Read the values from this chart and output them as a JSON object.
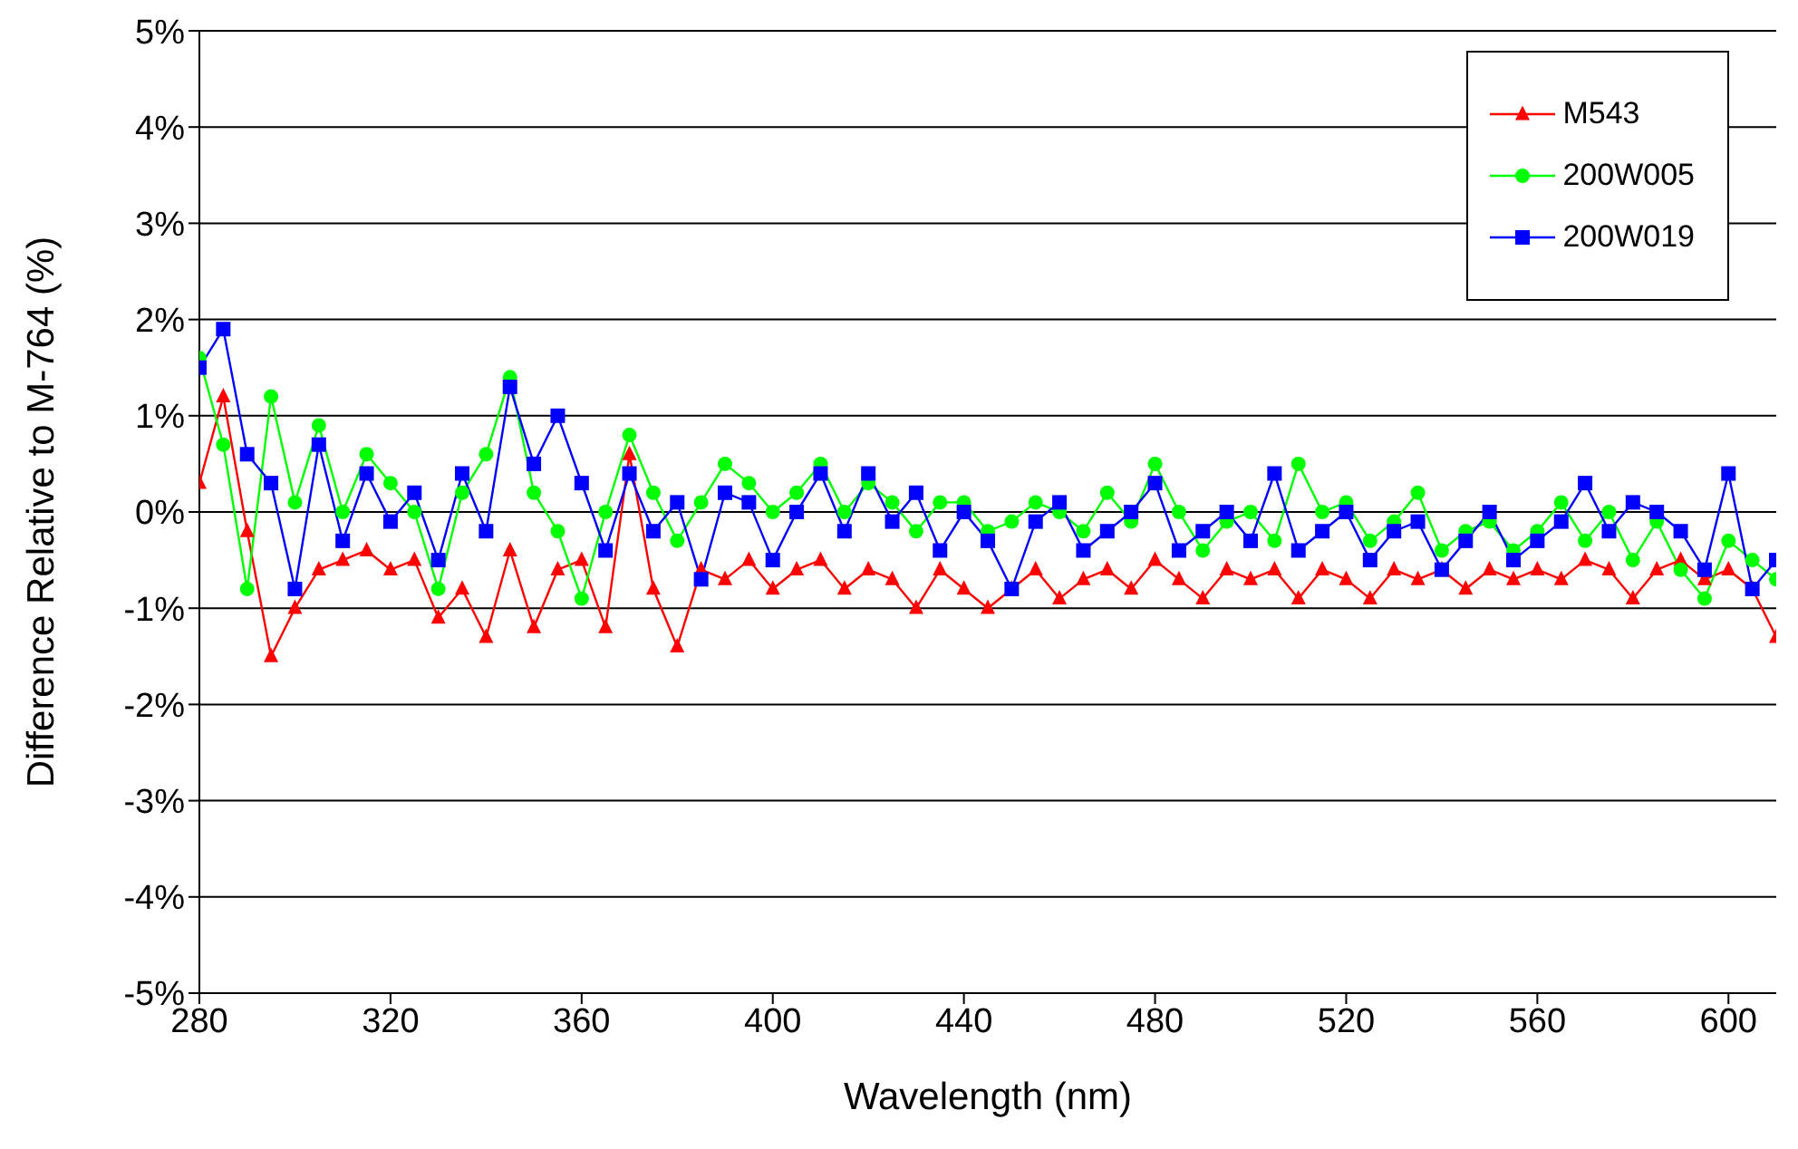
{
  "chart_data": {
    "type": "line",
    "xlabel": "Wavelength (nm)",
    "ylabel": "Difference Relative to M-764 (%)",
    "x": [
      280,
      285,
      290,
      295,
      300,
      305,
      310,
      315,
      320,
      325,
      330,
      335,
      340,
      345,
      350,
      355,
      360,
      365,
      370,
      375,
      380,
      385,
      390,
      395,
      400,
      405,
      410,
      415,
      420,
      425,
      430,
      435,
      440,
      445,
      450,
      455,
      460,
      465,
      470,
      475,
      480,
      485,
      490,
      495,
      500,
      505,
      510,
      515,
      520,
      525,
      530,
      535,
      540,
      545,
      550,
      555,
      560,
      565,
      570,
      575,
      580,
      585,
      590,
      595,
      600,
      605,
      610
    ],
    "series": [
      {
        "name": "M543",
        "color": "#ff0000",
        "marker": "triangle",
        "values": [
          0.3,
          1.2,
          -0.2,
          -1.5,
          -1.0,
          -0.6,
          -0.5,
          -0.4,
          -0.6,
          -0.5,
          -1.1,
          -0.8,
          -1.3,
          -0.4,
          -1.2,
          -0.6,
          -0.5,
          -1.2,
          0.6,
          -0.8,
          -1.4,
          -0.6,
          -0.7,
          -0.5,
          -0.8,
          -0.6,
          -0.5,
          -0.8,
          -0.6,
          -0.7,
          -1.0,
          -0.6,
          -0.8,
          -1.0,
          -0.8,
          -0.6,
          -0.9,
          -0.7,
          -0.6,
          -0.8,
          -0.5,
          -0.7,
          -0.9,
          -0.6,
          -0.7,
          -0.6,
          -0.9,
          -0.6,
          -0.7,
          -0.9,
          -0.6,
          -0.7,
          -0.6,
          -0.8,
          -0.6,
          -0.7,
          -0.6,
          -0.7,
          -0.5,
          -0.6,
          -0.9,
          -0.6,
          -0.5,
          -0.7,
          -0.6,
          -0.8,
          -1.3
        ]
      },
      {
        "name": "200W005",
        "color": "#00ff00",
        "marker": "circle",
        "values": [
          1.6,
          0.7,
          -0.8,
          1.2,
          0.1,
          0.9,
          0.0,
          0.6,
          0.3,
          0.0,
          -0.8,
          0.2,
          0.6,
          1.4,
          0.2,
          -0.2,
          -0.9,
          0.0,
          0.8,
          0.2,
          -0.3,
          0.1,
          0.5,
          0.3,
          0.0,
          0.2,
          0.5,
          0.0,
          0.3,
          0.1,
          -0.2,
          0.1,
          0.1,
          -0.2,
          -0.1,
          0.1,
          0.0,
          -0.2,
          0.2,
          -0.1,
          0.5,
          0.0,
          -0.4,
          -0.1,
          0.0,
          -0.3,
          0.5,
          0.0,
          0.1,
          -0.3,
          -0.1,
          0.2,
          -0.4,
          -0.2,
          -0.1,
          -0.4,
          -0.2,
          0.1,
          -0.3,
          0.0,
          -0.5,
          -0.1,
          -0.6,
          -0.9,
          -0.3,
          -0.5,
          -0.7
        ]
      },
      {
        "name": "200W019",
        "color": "#0000ff",
        "marker": "square",
        "values": [
          1.5,
          1.9,
          0.6,
          0.3,
          -0.8,
          0.7,
          -0.3,
          0.4,
          -0.1,
          0.2,
          -0.5,
          0.4,
          -0.2,
          1.3,
          0.5,
          1.0,
          0.3,
          -0.4,
          0.4,
          -0.2,
          0.1,
          -0.7,
          0.2,
          0.1,
          -0.5,
          0.0,
          0.4,
          -0.2,
          0.4,
          -0.1,
          0.2,
          -0.4,
          0.0,
          -0.3,
          -0.8,
          -0.1,
          0.1,
          -0.4,
          -0.2,
          0.0,
          0.3,
          -0.4,
          -0.2,
          0.0,
          -0.3,
          0.4,
          -0.4,
          -0.2,
          0.0,
          -0.5,
          -0.2,
          -0.1,
          -0.6,
          -0.3,
          0.0,
          -0.5,
          -0.3,
          -0.1,
          0.3,
          -0.2,
          0.1,
          0.0,
          -0.2,
          -0.6,
          0.4,
          -0.8,
          -0.5
        ]
      }
    ],
    "xlim": [
      280,
      610
    ],
    "xticks": [
      280,
      320,
      360,
      400,
      440,
      480,
      520,
      560,
      600
    ],
    "ylim": [
      -5,
      5
    ],
    "yticks": [
      {
        "value": -5,
        "label": "-5%"
      },
      {
        "value": -4,
        "label": "-4%"
      },
      {
        "value": -3,
        "label": "-3%"
      },
      {
        "value": -2,
        "label": "-2%"
      },
      {
        "value": -1,
        "label": "-1%"
      },
      {
        "value": 0,
        "label": "0%"
      },
      {
        "value": 1,
        "label": "1%"
      },
      {
        "value": 2,
        "label": "2%"
      },
      {
        "value": 3,
        "label": "3%"
      },
      {
        "value": 4,
        "label": "4%"
      },
      {
        "value": 5,
        "label": "5%"
      }
    ],
    "grid": "y",
    "legend": "top right",
    "line_style": "solid"
  }
}
